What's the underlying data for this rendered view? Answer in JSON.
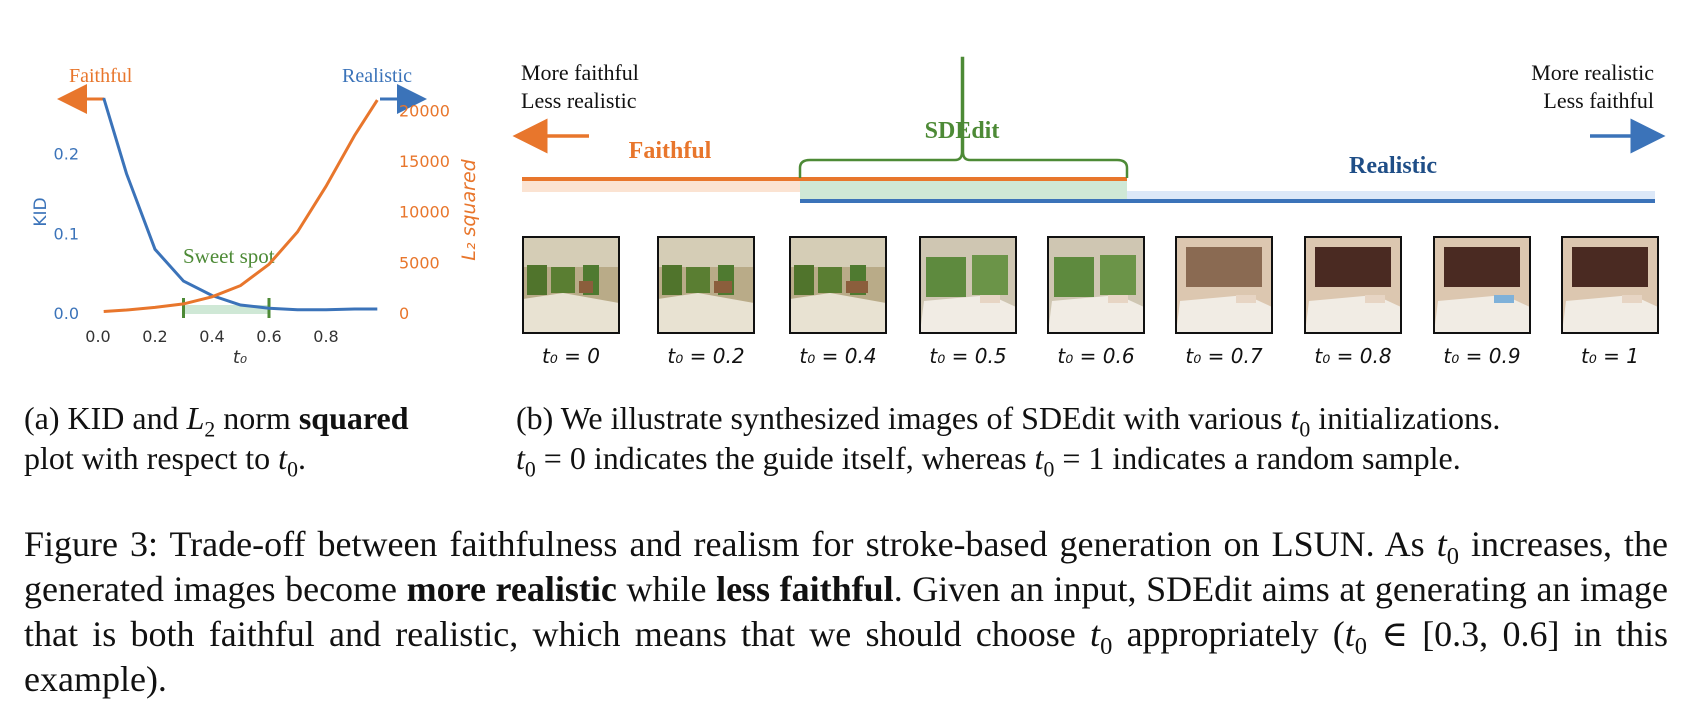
{
  "colors": {
    "faithful": "#e8762c",
    "realistic": "#3b73b9",
    "sdedit": "#4d8a36",
    "sweet_band": "#cfe8d6",
    "faithful_band": "#fbe3d2",
    "realistic_band": "#dce8f8",
    "realistic_text": "#1f4e87"
  },
  "panel_a": {
    "faithful_label": "Faithful",
    "realistic_label": "Realistic",
    "sweet_spot_label": "Sweet spot",
    "caption_prefix": "(a) KID and ",
    "caption_l2": "L",
    "caption_l2_sub": "2",
    "caption_norm": " norm ",
    "caption_bold": "squared",
    "caption_line2_prefix": "plot with respect to ",
    "caption_t": "t",
    "caption_t_sub": "0",
    "caption_suffix": "."
  },
  "chart_data": {
    "type": "line",
    "xlabel": "t₀",
    "ylabel": "KID",
    "y2label": "L₂ squared",
    "xlim": [
      0.0,
      1.0
    ],
    "ylim": [
      0.0,
      0.28
    ],
    "y2lim": [
      0,
      22000
    ],
    "x_ticks": [
      "0.0",
      "0.2",
      "0.4",
      "0.6",
      "0.8"
    ],
    "y_ticks": [
      "0.0",
      "0.1",
      "0.2"
    ],
    "y2_ticks": [
      "0",
      "5000",
      "10000",
      "15000",
      "20000"
    ],
    "sweet_spot_range": [
      0.3,
      0.6
    ],
    "series": [
      {
        "name": "KID",
        "axis": "left",
        "x": [
          0.02,
          0.1,
          0.2,
          0.3,
          0.4,
          0.5,
          0.6,
          0.7,
          0.8,
          0.9,
          0.98
        ],
        "values": [
          0.27,
          0.175,
          0.08,
          0.04,
          0.022,
          0.01,
          0.006,
          0.004,
          0.004,
          0.005,
          0.005
        ]
      },
      {
        "name": "L₂ squared",
        "axis": "right",
        "x": [
          0.02,
          0.1,
          0.2,
          0.3,
          0.4,
          0.5,
          0.6,
          0.7,
          0.8,
          0.9,
          0.98
        ],
        "values": [
          150,
          300,
          550,
          900,
          1600,
          2700,
          4800,
          8000,
          12500,
          17500,
          21000
        ]
      }
    ]
  },
  "panel_b": {
    "more_faithful": "More faithful",
    "less_realistic": "Less realistic",
    "more_realistic": "More realistic",
    "less_faithful": "Less faithful",
    "faithful_label": "Faithful",
    "sdedit_label": "SDEdit",
    "realistic_label": "Realistic",
    "thumbnails": [
      {
        "label": "t₀ = 0",
        "kind": "stroke",
        "step": 0
      },
      {
        "label": "t₀ = 0.2",
        "kind": "stroke",
        "step": 1
      },
      {
        "label": "t₀ = 0.4",
        "kind": "stroke",
        "step": 2
      },
      {
        "label": "t₀ = 0.5",
        "kind": "photo",
        "step": 3
      },
      {
        "label": "t₀ = 0.6",
        "kind": "photo",
        "step": 4
      },
      {
        "label": "t₀ = 0.7",
        "kind": "photo",
        "step": 5
      },
      {
        "label": "t₀ = 0.8",
        "kind": "photo",
        "step": 6
      },
      {
        "label": "t₀ = 0.9",
        "kind": "photo",
        "step": 7
      },
      {
        "label": "t₀ = 1",
        "kind": "photo",
        "step": 8
      }
    ],
    "caption_line1_prefix": "(b) We illustrate synthesized images of SDEdit with various ",
    "caption_line1_suffix": " initializations.",
    "caption_line2_a": " = 0 indicates the guide itself, whereas ",
    "caption_line2_b": " = 1 indicates a random sample.",
    "caption_t": "t",
    "caption_t_sub": "0"
  },
  "figure_caption": {
    "prefix": "Figure 3: Trade-off between faithfulness and realism for stroke-based generation on LSUN. As ",
    "part2": " increases, the generated images become ",
    "bold1": "more realistic",
    "part3": " while ",
    "bold2": "less faithful",
    "part4": ". Given an input, SDEdit aims at generating an image that is both faithful and realistic, which means that we should choose ",
    "part5": " appropriately (",
    "range": " ∈ [0.3, 0.6]",
    "part6": " in this example).",
    "t": "t",
    "t_sub": "0"
  }
}
